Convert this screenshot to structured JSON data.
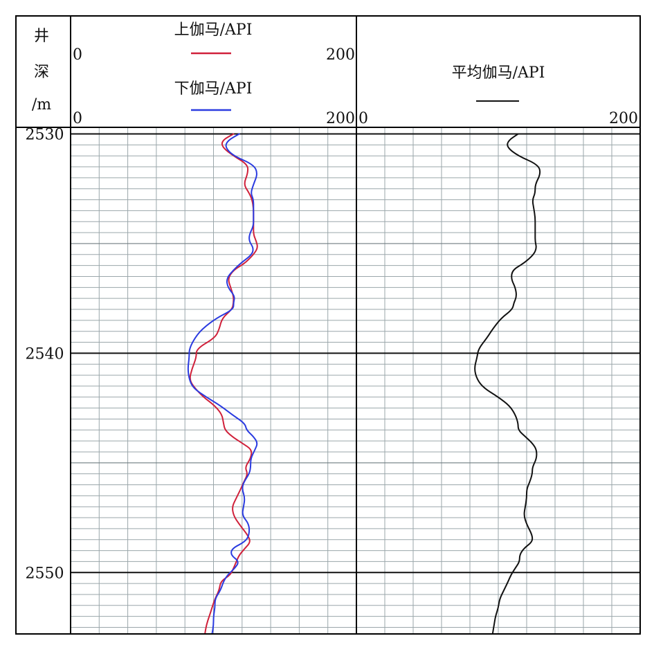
{
  "header": {
    "depth_title_lines": [
      "井",
      "深",
      "/m"
    ],
    "track1": {
      "curve_top": {
        "title": "上伽马/API",
        "min_label": "0",
        "max_label": "200"
      },
      "curve_bottom": {
        "title": "下伽马/API",
        "min_label": "0",
        "max_label": "200"
      }
    },
    "track2": {
      "curve": {
        "title": "平均伽马/API",
        "min_label": "0",
        "max_label": "200"
      }
    }
  },
  "colors": {
    "upper_gamma": "#d0203a",
    "lower_gamma": "#2a3be0",
    "average_gamma": "#111111"
  },
  "chart_data": {
    "type": "line",
    "y_axis": {
      "label": "井深/m",
      "range": [
        2529.7,
        2552.8
      ],
      "reversed": true,
      "ticks": [
        2530,
        2540,
        2550
      ]
    },
    "x_axis": {
      "range": [
        0,
        200
      ]
    },
    "grid": true,
    "tracks": [
      {
        "name": "track1",
        "series": [
          {
            "name": "上伽马/API",
            "color": "#d0203a",
            "points": [
              [
                2530.0,
                114
              ],
              [
                2530.3,
                106
              ],
              [
                2530.6,
                106
              ],
              [
                2531.0,
                114
              ],
              [
                2531.4,
                124
              ],
              [
                2531.8,
                124
              ],
              [
                2532.3,
                121
              ],
              [
                2532.7,
                125
              ],
              [
                2533.0,
                127
              ],
              [
                2533.4,
                128
              ],
              [
                2533.8,
                128
              ],
              [
                2534.2,
                128
              ],
              [
                2534.6,
                128
              ],
              [
                2534.9,
                130
              ],
              [
                2535.2,
                131
              ],
              [
                2535.5,
                128
              ],
              [
                2535.9,
                122
              ],
              [
                2536.2,
                114
              ],
              [
                2536.6,
                110
              ],
              [
                2537.0,
                112
              ],
              [
                2537.4,
                114
              ],
              [
                2537.7,
                114
              ],
              [
                2538.0,
                113
              ],
              [
                2538.4,
                106
              ],
              [
                2538.9,
                104
              ],
              [
                2539.3,
                101
              ],
              [
                2539.8,
                88
              ],
              [
                2540.2,
                88
              ],
              [
                2540.7,
                85
              ],
              [
                2541.2,
                83
              ],
              [
                2541.6,
                87
              ],
              [
                2542.0,
                93
              ],
              [
                2542.4,
                101
              ],
              [
                2542.8,
                106
              ],
              [
                2543.2,
                107
              ],
              [
                2543.5,
                108
              ],
              [
                2543.8,
                113
              ],
              [
                2544.1,
                120
              ],
              [
                2544.4,
                127
              ],
              [
                2544.8,
                126
              ],
              [
                2545.2,
                122
              ],
              [
                2545.5,
                124
              ],
              [
                2545.9,
                121
              ],
              [
                2546.2,
                119
              ],
              [
                2546.6,
                116
              ],
              [
                2547.0,
                113
              ],
              [
                2547.4,
                114
              ],
              [
                2547.8,
                118
              ],
              [
                2548.3,
                124
              ],
              [
                2548.6,
                126
              ],
              [
                2548.9,
                122
              ],
              [
                2549.2,
                118
              ],
              [
                2549.5,
                116
              ],
              [
                2549.8,
                114
              ],
              [
                2550.1,
                112
              ],
              [
                2550.4,
                105
              ],
              [
                2550.8,
                104
              ],
              [
                2551.2,
                101
              ],
              [
                2551.6,
                99
              ],
              [
                2552.0,
                97
              ],
              [
                2552.4,
                95
              ],
              [
                2552.8,
                94
              ]
            ]
          },
          {
            "name": "下伽马/API",
            "color": "#2a3be0",
            "points": [
              [
                2530.0,
                118
              ],
              [
                2530.3,
                110
              ],
              [
                2530.6,
                108
              ],
              [
                2531.0,
                114
              ],
              [
                2531.4,
                128
              ],
              [
                2531.8,
                131
              ],
              [
                2532.3,
                128
              ],
              [
                2532.7,
                126
              ],
              [
                2533.0,
                128
              ],
              [
                2533.4,
                128
              ],
              [
                2533.8,
                128
              ],
              [
                2534.2,
                128
              ],
              [
                2534.6,
                125
              ],
              [
                2534.9,
                125
              ],
              [
                2535.2,
                128
              ],
              [
                2535.5,
                127
              ],
              [
                2535.9,
                119
              ],
              [
                2536.2,
                114
              ],
              [
                2536.6,
                109
              ],
              [
                2537.0,
                110
              ],
              [
                2537.4,
                115
              ],
              [
                2537.7,
                114
              ],
              [
                2538.0,
                114
              ],
              [
                2538.4,
                102
              ],
              [
                2538.9,
                92
              ],
              [
                2539.3,
                87
              ],
              [
                2539.8,
                83
              ],
              [
                2540.2,
                83
              ],
              [
                2540.7,
                82
              ],
              [
                2541.2,
                83
              ],
              [
                2541.6,
                86
              ],
              [
                2542.0,
                95
              ],
              [
                2542.4,
                105
              ],
              [
                2542.8,
                113
              ],
              [
                2543.2,
                122
              ],
              [
                2543.5,
                123
              ],
              [
                2543.8,
                128
              ],
              [
                2544.1,
                131
              ],
              [
                2544.4,
                129
              ],
              [
                2544.8,
                126
              ],
              [
                2545.2,
                126
              ],
              [
                2545.5,
                125
              ],
              [
                2545.9,
                121
              ],
              [
                2546.2,
                120
              ],
              [
                2546.6,
                122
              ],
              [
                2547.0,
                121
              ],
              [
                2547.4,
                120
              ],
              [
                2547.8,
                125
              ],
              [
                2548.3,
                125
              ],
              [
                2548.6,
                122
              ],
              [
                2548.9,
                113
              ],
              [
                2549.2,
                112
              ],
              [
                2549.5,
                118
              ],
              [
                2549.8,
                115
              ],
              [
                2550.1,
                110
              ],
              [
                2550.4,
                107
              ],
              [
                2550.8,
                105
              ],
              [
                2551.2,
                101
              ],
              [
                2551.6,
                101
              ],
              [
                2552.0,
                100
              ],
              [
                2552.4,
                100
              ],
              [
                2552.8,
                99
              ]
            ]
          }
        ]
      },
      {
        "name": "track2",
        "series": [
          {
            "name": "平均伽马/API",
            "color": "#111111",
            "points": [
              [
                2530.0,
                114
              ],
              [
                2530.3,
                107
              ],
              [
                2530.6,
                106
              ],
              [
                2531.0,
                114
              ],
              [
                2531.4,
                128
              ],
              [
                2531.8,
                130
              ],
              [
                2532.3,
                126
              ],
              [
                2532.7,
                126
              ],
              [
                2533.0,
                124
              ],
              [
                2533.4,
                125
              ],
              [
                2533.8,
                126
              ],
              [
                2534.2,
                126
              ],
              [
                2534.6,
                126
              ],
              [
                2534.9,
                126
              ],
              [
                2535.2,
                127
              ],
              [
                2535.5,
                125
              ],
              [
                2535.9,
                118
              ],
              [
                2536.2,
                110
              ],
              [
                2536.6,
                109
              ],
              [
                2537.0,
                112
              ],
              [
                2537.4,
                113
              ],
              [
                2537.7,
                111
              ],
              [
                2538.0,
                110
              ],
              [
                2538.4,
                102
              ],
              [
                2538.9,
                96
              ],
              [
                2539.3,
                92
              ],
              [
                2539.8,
                86
              ],
              [
                2540.2,
                85
              ],
              [
                2540.7,
                83
              ],
              [
                2541.2,
                85
              ],
              [
                2541.6,
                90
              ],
              [
                2542.0,
                100
              ],
              [
                2542.4,
                108
              ],
              [
                2542.8,
                112
              ],
              [
                2543.2,
                114
              ],
              [
                2543.5,
                114
              ],
              [
                2543.8,
                119
              ],
              [
                2544.1,
                124
              ],
              [
                2544.4,
                127
              ],
              [
                2544.8,
                127
              ],
              [
                2545.2,
                124
              ],
              [
                2545.5,
                124
              ],
              [
                2545.9,
                122
              ],
              [
                2546.2,
                120
              ],
              [
                2546.6,
                120
              ],
              [
                2547.0,
                119
              ],
              [
                2547.4,
                118
              ],
              [
                2547.8,
                120
              ],
              [
                2548.3,
                124
              ],
              [
                2548.6,
                124
              ],
              [
                2548.9,
                118
              ],
              [
                2549.2,
                115
              ],
              [
                2549.5,
                115
              ],
              [
                2549.8,
                112
              ],
              [
                2550.1,
                109
              ],
              [
                2550.4,
                107
              ],
              [
                2550.8,
                104
              ],
              [
                2551.2,
                101
              ],
              [
                2551.6,
                100
              ],
              [
                2552.0,
                98
              ],
              [
                2552.4,
                97
              ],
              [
                2552.8,
                96
              ]
            ]
          }
        ]
      }
    ]
  }
}
